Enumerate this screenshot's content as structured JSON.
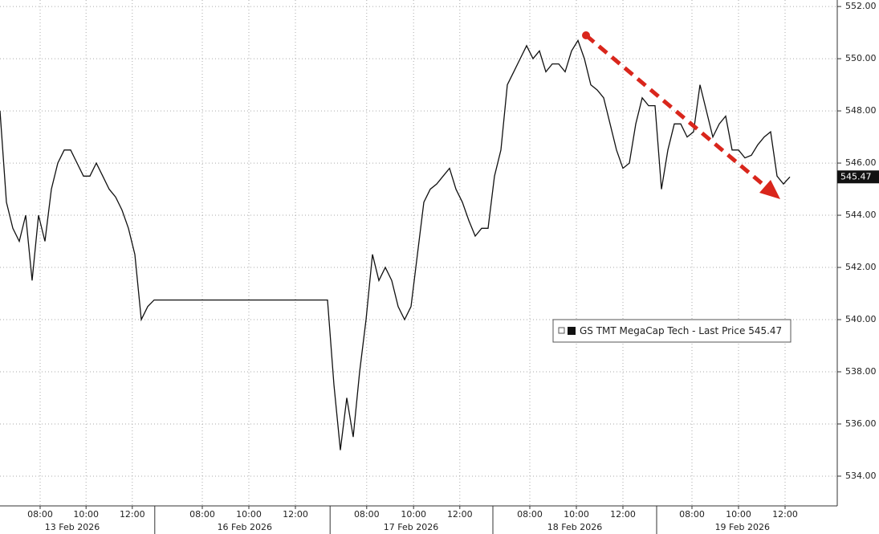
{
  "chart_data": {
    "type": "line",
    "series": [
      {
        "name": "GS TMT MegaCap Tech - Last Price",
        "color": "#111111",
        "values": [
          548,
          544.5,
          543.5,
          543,
          544,
          541.5,
          544,
          543,
          545,
          546,
          546.5,
          546.5,
          546,
          545.5,
          545.5,
          546,
          545.5,
          545,
          544.7,
          544.2,
          543.5,
          542.5,
          540,
          540.5,
          540.75,
          540.75,
          540.75,
          540.75,
          540.75,
          540.75,
          540.75,
          540.75,
          540.75,
          540.75,
          540.75,
          540.75,
          540.75,
          540.75,
          540.75,
          540.75,
          540.75,
          540.75,
          540.75,
          540.75,
          540.75,
          540.75,
          540.75,
          540.75,
          540.75,
          540.75,
          540.75,
          540.75,
          537.5,
          535,
          537,
          535.5,
          538,
          540,
          542.5,
          541.5,
          542,
          541.5,
          540.5,
          540,
          540.5,
          542.5,
          544.5,
          545,
          545.2,
          545.5,
          545.8,
          545,
          544.5,
          543.8,
          543.2,
          543.5,
          543.5,
          545.5,
          546.5,
          549,
          549.5,
          550,
          550.5,
          550,
          550.3,
          549.5,
          549.8,
          549.8,
          549.5,
          550.3,
          550.7,
          550,
          549,
          548.8,
          548.5,
          547.5,
          546.5,
          545.8,
          546,
          547.5,
          548.5,
          548.2,
          548.2,
          545,
          546.5,
          547.5,
          547.5,
          547,
          547.2,
          549,
          548,
          547,
          547.5,
          547.8,
          546.5,
          546.5,
          546.2,
          546.3,
          546.7,
          547,
          547.2,
          545.5,
          545.2,
          545.47
        ]
      }
    ],
    "x": [
      0,
      1,
      2,
      3,
      4,
      5,
      6,
      7,
      8,
      9,
      10,
      11,
      12,
      13,
      14,
      15,
      16,
      17,
      18,
      19,
      20,
      21,
      22,
      23,
      24,
      25,
      26,
      27,
      28,
      29,
      30,
      31,
      32,
      33,
      34,
      35,
      36,
      37,
      38,
      39,
      40,
      41,
      42,
      43,
      44,
      45,
      46,
      47,
      48,
      49,
      50,
      51,
      52,
      53,
      54,
      55,
      56,
      57,
      58,
      59,
      60,
      61,
      62,
      63,
      64,
      65,
      66,
      67,
      68,
      69,
      70,
      71,
      72,
      73,
      74,
      75,
      76,
      77,
      78,
      79,
      80,
      81,
      82,
      83,
      84,
      85,
      86,
      87,
      88,
      89,
      90,
      91,
      92,
      93,
      94,
      95,
      96,
      97,
      98,
      99,
      100,
      101,
      102,
      103,
      104,
      105,
      106,
      107,
      108,
      109,
      110,
      111,
      112,
      113,
      114,
      115,
      116,
      117,
      118,
      119,
      120,
      121,
      122,
      123
    ],
    "last_price": 545.47,
    "xlim": [
      0,
      130.375
    ],
    "xticks": [
      {
        "value": 6.25,
        "label": "08:00"
      },
      {
        "value": 13.4,
        "label": "10:00"
      },
      {
        "value": 20.6,
        "label": "12:00"
      },
      {
        "value": 31.5,
        "label": "08:00"
      },
      {
        "value": 38.75,
        "label": "10:00"
      },
      {
        "value": 46,
        "label": "12:00"
      },
      {
        "value": 57.1,
        "label": "08:00"
      },
      {
        "value": 64.4,
        "label": "10:00"
      },
      {
        "value": 71.6,
        "label": "12:00"
      },
      {
        "value": 82.5,
        "label": "08:00"
      },
      {
        "value": 89.75,
        "label": "10:00"
      },
      {
        "value": 97,
        "label": "12:00"
      },
      {
        "value": 107.75,
        "label": "08:00"
      },
      {
        "value": 115,
        "label": "10:00"
      },
      {
        "value": 122.25,
        "label": "12:00"
      }
    ],
    "date_labels": [
      {
        "value": 11.25,
        "label": "13 Feb 2026"
      },
      {
        "value": 38.1,
        "label": "16 Feb 2026"
      },
      {
        "value": 64,
        "label": "17 Feb 2026"
      },
      {
        "value": 89.5,
        "label": "18 Feb 2026"
      },
      {
        "value": 115.6,
        "label": "19 Feb 2026"
      }
    ],
    "day_breaks": [
      24.1,
      51.4,
      76.75,
      102.25
    ],
    "ylim": [
      532.86,
      552.25
    ],
    "yticks": [
      {
        "value": 534,
        "label": "534.00"
      },
      {
        "value": 536,
        "label": "536.00"
      },
      {
        "value": 538,
        "label": "538.00"
      },
      {
        "value": 540,
        "label": "540.00"
      },
      {
        "value": 542,
        "label": "542.00"
      },
      {
        "value": 544,
        "label": "544.00"
      },
      {
        "value": 546,
        "label": "546.00"
      },
      {
        "value": 548,
        "label": "548.00"
      },
      {
        "value": 550,
        "label": "550.00"
      },
      {
        "value": 552,
        "label": "552.00"
      }
    ],
    "grid": true
  }
}
